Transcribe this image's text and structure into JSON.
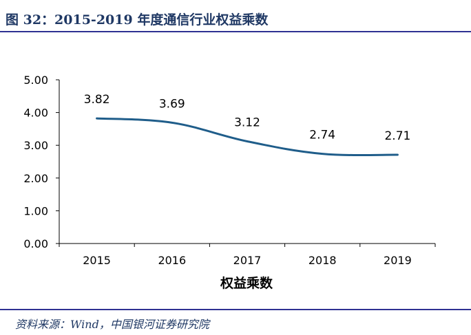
{
  "figure": {
    "title": "图 32：2015-2019 年度通信行业权益乘数",
    "source": "资料来源：Wind，中国银河证券研究院"
  },
  "chart_data": {
    "type": "line",
    "title": "",
    "xlabel": "权益乘数",
    "ylabel": "",
    "categories": [
      "2015",
      "2016",
      "2017",
      "2018",
      "2019"
    ],
    "series": [
      {
        "name": "",
        "values": [
          3.82,
          3.69,
          3.12,
          2.74,
          2.71
        ],
        "color": "#1f5d8a",
        "smooth": true
      }
    ],
    "data_labels": [
      "3.82",
      "3.69",
      "3.12",
      "2.74",
      "2.71"
    ],
    "ylim": [
      0,
      5
    ],
    "yticks": [
      "0.00",
      "1.00",
      "2.00",
      "3.00",
      "4.00",
      "5.00"
    ],
    "grid": false,
    "legend": "none"
  }
}
